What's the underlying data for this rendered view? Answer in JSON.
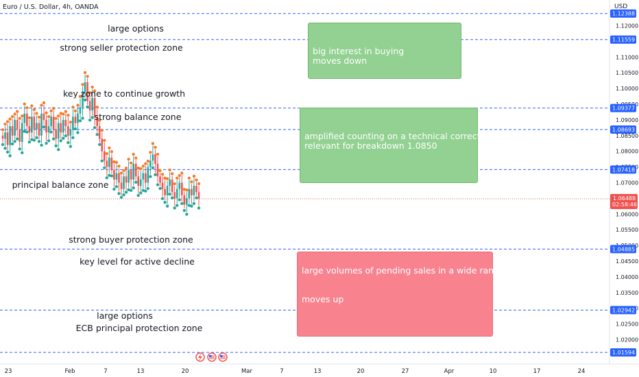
{
  "title": "Euro / U.S. Dollar, 4h, OANDA",
  "currency": "USD",
  "colors": {
    "up": "#26a69a",
    "down": "#ef5350",
    "dot_green": "#26a69a",
    "dot_orange": "#f57c2a",
    "level_line": "#2962ff",
    "note_green": "#92d191",
    "note_red": "#f8838f"
  },
  "chart_data": {
    "type": "candlestick",
    "y_ticks": [
      "1.12000",
      "1.11000",
      "1.10500",
      "1.10000",
      "1.09500",
      "1.09000",
      "1.08500",
      "1.08000",
      "1.07500",
      "1.07000",
      "1.06000",
      "1.05500",
      "1.05000",
      "1.04500",
      "1.04000",
      "1.03500",
      "1.03000",
      "1.02500",
      "1.02000"
    ],
    "y_tick_values": [
      1.12,
      1.11,
      1.105,
      1.1,
      1.095,
      1.09,
      1.085,
      1.08,
      1.075,
      1.07,
      1.06,
      1.055,
      1.05,
      1.045,
      1.04,
      1.035,
      1.03,
      1.025,
      1.02
    ],
    "x_ticks": [
      "23",
      "Feb",
      "7",
      "13",
      "20",
      "Mar",
      "7",
      "13",
      "20",
      "27",
      "Apr",
      "10",
      "17",
      "24"
    ],
    "levels": [
      {
        "price": 1.12388,
        "label": "1.12388"
      },
      {
        "price": 1.11559,
        "label": "1.11559"
      },
      {
        "price": 1.09377,
        "label": "1.09377"
      },
      {
        "price": 1.08693,
        "label": "1.08693"
      },
      {
        "price": 1.07418,
        "label": "1.07418"
      },
      {
        "price": 1.04885,
        "label": "1.04885"
      },
      {
        "price": 1.02942,
        "label": "1.02942"
      },
      {
        "price": 1.01594,
        "label": "1.01594"
      }
    ],
    "last_price": {
      "price": 1.06488,
      "label": "1.06488",
      "countdown": "02:58:46"
    },
    "candle_closes": [
      1.084,
      1.086,
      1.082,
      1.088,
      1.085,
      1.09,
      1.087,
      1.083,
      1.089,
      1.092,
      1.088,
      1.086,
      1.091,
      1.087,
      1.089,
      1.085,
      1.092,
      1.09,
      1.086,
      1.088,
      1.091,
      1.087,
      1.084,
      1.089,
      1.086,
      1.09,
      1.088,
      1.085,
      1.087,
      1.091,
      1.089,
      1.092,
      1.094,
      1.099,
      1.102,
      1.096,
      1.093,
      1.097,
      1.091,
      1.088,
      1.084,
      1.08,
      1.077,
      1.075,
      1.078,
      1.074,
      1.071,
      1.073,
      1.07,
      1.068,
      1.072,
      1.07,
      1.074,
      1.071,
      1.076,
      1.072,
      1.069,
      1.071,
      1.073,
      1.07,
      1.075,
      1.077,
      1.079,
      1.076,
      1.072,
      1.07,
      1.068,
      1.066,
      1.069,
      1.071,
      1.067,
      1.065,
      1.068,
      1.07,
      1.066,
      1.063,
      1.065,
      1.068,
      1.066,
      1.069,
      1.067,
      1.065
    ]
  },
  "annotations": [
    "large options",
    "strong seller protection zone",
    "key zone to continue growth",
    "strong balance zone",
    "principal balance zone",
    "strong buyer protection zone",
    "key level for active decline",
    "large options",
    "ECB principal protection zone"
  ],
  "notes": [
    {
      "lines": [
        "big interest in buying",
        "moves down"
      ]
    },
    {
      "lines": [
        "amplified counting on a technical correction",
        "relevant for breakdown 1.0850"
      ]
    },
    {
      "lines": [
        "large volumes of pending sales in a wide range",
        "moves up"
      ]
    }
  ],
  "event_icons": [
    "lightning-icon",
    "us-flag-icon",
    "us-flag-icon"
  ]
}
